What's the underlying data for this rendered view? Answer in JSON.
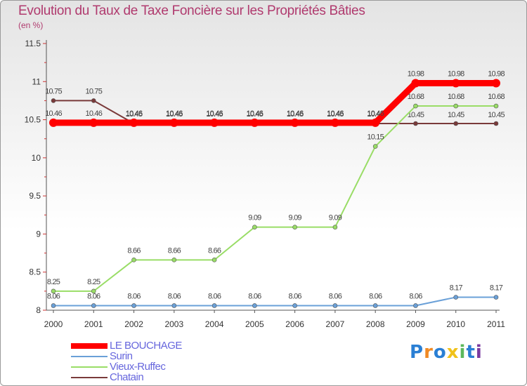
{
  "header": {
    "title": "Evolution du Taux de Taxe Foncière sur les Propriétés Bâties",
    "unit": "(en %)"
  },
  "logo": {
    "letters": [
      "P",
      "r",
      "o",
      "x",
      "i",
      "t",
      "i"
    ],
    "colors": [
      "#2a7fd4",
      "#f08a24",
      "#2a7fd4",
      "#f0c21a",
      "#5cb85c",
      "#2a7fd4",
      "#7a3aa0"
    ]
  },
  "chart_data": {
    "type": "line",
    "title": "Evolution du Taux de Taxe Foncière sur les Propriétés Bâties",
    "ylabel": "(en %)",
    "x": [
      "2000",
      "2001",
      "2002",
      "2003",
      "2004",
      "2005",
      "2006",
      "2007",
      "2008",
      "2009",
      "2010",
      "2011"
    ],
    "ylim": [
      8,
      11.5
    ],
    "yticks": [
      8,
      8.5,
      9,
      9.5,
      10,
      10.5,
      11,
      11.5
    ],
    "ytick_labels": [
      "8",
      "8.5",
      "9",
      "9.5",
      "10",
      "10.5",
      "11",
      "11.5"
    ],
    "grid": false,
    "legend_position": "bottom-left",
    "series": [
      {
        "name": "Chatain",
        "color": "#7a3a3a",
        "values": [
          10.75,
          10.75,
          10.45,
          10.45,
          10.45,
          10.45,
          10.45,
          10.45,
          10.45,
          10.45,
          10.45,
          10.45
        ],
        "labels": [
          "10.75",
          "10.75",
          "10.45",
          "10.45",
          "10.45",
          "10.45",
          "10.45",
          "10.45",
          "10.45",
          "10.45",
          "10.45",
          "10.45"
        ],
        "label_pos": [
          "above",
          "above",
          "above",
          "above",
          "above",
          "above",
          "above",
          "above",
          "above",
          "below",
          "below",
          "below"
        ]
      },
      {
        "name": "Vieux-Ruffec",
        "color": "#99dd66",
        "values": [
          8.25,
          8.25,
          8.66,
          8.66,
          8.66,
          9.09,
          9.09,
          9.09,
          10.15,
          10.68,
          10.68,
          10.68
        ],
        "labels": [
          "8.25",
          "8.25",
          "8.66",
          "8.66",
          "8.66",
          "9.09",
          "9.09",
          "9.09",
          "10.15",
          "10.68",
          "10.68",
          "10.68"
        ],
        "label_pos": [
          "above",
          "above",
          "above",
          "above",
          "above",
          "above",
          "above",
          "above",
          "above",
          "above",
          "above",
          "above"
        ]
      },
      {
        "name": "Surin",
        "color": "#6aa0d8",
        "values": [
          8.06,
          8.06,
          8.06,
          8.06,
          8.06,
          8.06,
          8.06,
          8.06,
          8.06,
          8.06,
          8.17,
          8.17
        ],
        "labels": [
          "8.06",
          "8.06",
          "8.06",
          "8.06",
          "8.06",
          "8.06",
          "8.06",
          "8.06",
          "8.06",
          "8.06",
          "8.17",
          "8.17"
        ],
        "label_pos": [
          "above",
          "above",
          "above",
          "above",
          "above",
          "above",
          "above",
          "above",
          "above",
          "above",
          "above",
          "above"
        ]
      },
      {
        "name": "LE BOUCHAGE",
        "color": "#ff0000",
        "values": [
          10.46,
          10.46,
          10.46,
          10.46,
          10.46,
          10.46,
          10.46,
          10.46,
          10.46,
          10.98,
          10.98,
          10.98
        ],
        "labels": [
          "10.46",
          "10.46",
          "10.46",
          "10.46",
          "10.46",
          "10.46",
          "10.46",
          "10.46",
          "10.46",
          "10.98",
          "10.98",
          "10.98"
        ],
        "label_pos": [
          "above",
          "above",
          "above",
          "above",
          "above",
          "above",
          "above",
          "above",
          "above",
          "above",
          "above",
          "above"
        ]
      }
    ],
    "legend": [
      "LE BOUCHAGE",
      "Surin",
      "Vieux-Ruffec",
      "Chatain"
    ]
  }
}
